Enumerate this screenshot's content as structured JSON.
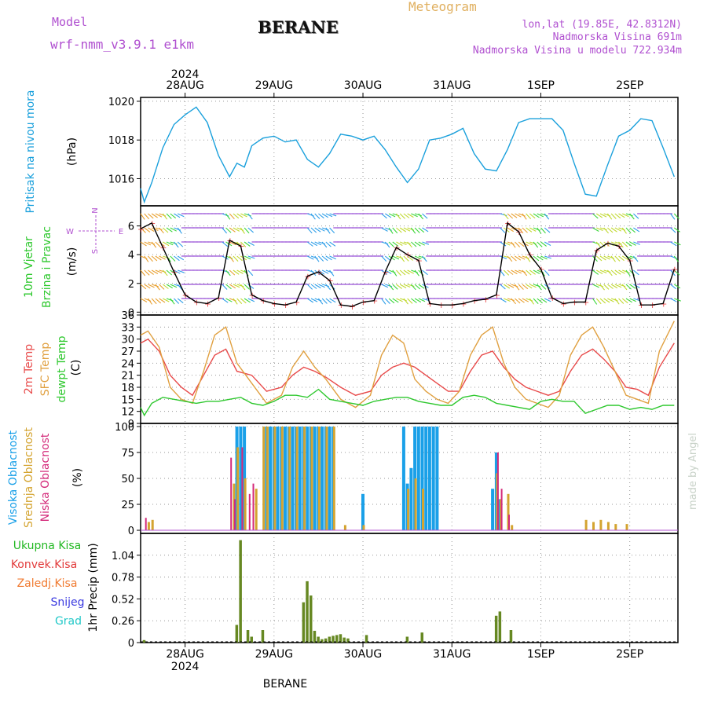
{
  "header": {
    "model_label": "Model",
    "model_name": "wrf-nmm_v3.9.1 e1km",
    "title": "BERANE",
    "meteogram_label": "Meteogram",
    "lonlat": "lon,lat (19.85E, 42.8312N)",
    "altitude": "Nadmorska Visina 691m",
    "model_altitude": "Nadmorska Visina u modelu 722.934m",
    "credit": "made by Angel",
    "footer_station": "BERANE"
  },
  "colors": {
    "pressure": "#1aa0dc",
    "temp2m": "#e84a4a",
    "sfc": "#e0a040",
    "dew": "#2ec82e",
    "high": "#1aa0e8",
    "mid": "#d4a430",
    "low": "#d42a7a",
    "total": "#22b822",
    "conv": "#e23a3a",
    "frz": "#f07a30",
    "snow": "#3a3ae0",
    "hail": "#22c8c8",
    "purple": "#b050d0",
    "gold": "#e0b060",
    "bar": "#668822"
  },
  "time_axis": {
    "year": "2024",
    "days": [
      "28AUG",
      "29AUG",
      "30AUG",
      "31AUG",
      "1SEP",
      "2SEP"
    ],
    "day_hours": [
      12,
      36,
      60,
      84,
      108,
      132
    ],
    "total_hours": 145
  },
  "chart_data": [
    {
      "type": "line",
      "id": "pressure",
      "ylabel_title": "Pritisak na nivou mora",
      "ylabel_unit": "(hPa)",
      "yticks": [
        "1016",
        "1018",
        "1020"
      ],
      "ylim": [
        1014.6,
        1020.2
      ],
      "grid": true,
      "series": [
        {
          "x": [
            0,
            1,
            3,
            6,
            9,
            12,
            15,
            18,
            21,
            24,
            26,
            28,
            30,
            33,
            36,
            39,
            42,
            45,
            48,
            51,
            54,
            57,
            60,
            63,
            66,
            69,
            72,
            75,
            78,
            81,
            84,
            87,
            90,
            93,
            96,
            99,
            102,
            105,
            108,
            111,
            114,
            117,
            120,
            123,
            126,
            129,
            132,
            135,
            138,
            141,
            144
          ],
          "y": [
            1015.5,
            1014.8,
            1015.8,
            1017.6,
            1018.8,
            1019.3,
            1019.7,
            1018.9,
            1017.2,
            1016.1,
            1016.8,
            1016.6,
            1017.7,
            1018.1,
            1018.2,
            1017.9,
            1018.0,
            1017.0,
            1016.6,
            1017.3,
            1018.3,
            1018.2,
            1018.0,
            1018.2,
            1017.5,
            1016.6,
            1015.8,
            1016.5,
            1018.0,
            1018.1,
            1018.3,
            1018.6,
            1017.3,
            1016.5,
            1016.4,
            1017.5,
            1018.9,
            1019.1,
            1019.1,
            1019.1,
            1018.5,
            1016.8,
            1015.2,
            1015.1,
            1016.7,
            1018.2,
            1018.5,
            1019.1,
            1019.0,
            1017.6,
            1016.1
          ]
        }
      ]
    },
    {
      "type": "scatter",
      "id": "wind",
      "ylabel_title": "10m Vjetar",
      "ylabel_subtitle": "Brzina i Pravac",
      "ylabel_unit": "(m/s)",
      "compass": {
        "n": "N",
        "s": "S",
        "w": "W",
        "e": "E"
      },
      "yticks": [
        "0",
        "2",
        "4",
        "6"
      ],
      "ylim": [
        -0.2,
        7.4
      ],
      "grid": true,
      "series": [
        {
          "name": "speed",
          "x": [
            0,
            3,
            6,
            9,
            12,
            15,
            18,
            21,
            24,
            27,
            30,
            33,
            36,
            39,
            42,
            45,
            48,
            51,
            54,
            57,
            60,
            63,
            66,
            69,
            72,
            75,
            78,
            81,
            84,
            87,
            90,
            93,
            96,
            99,
            102,
            105,
            108,
            111,
            114,
            117,
            120,
            123,
            126,
            129,
            132,
            135,
            138,
            141,
            144
          ],
          "y": [
            5.8,
            6.2,
            4.5,
            2.8,
            1.2,
            0.7,
            0.6,
            1.0,
            5.0,
            4.6,
            1.2,
            0.8,
            0.6,
            0.5,
            0.7,
            2.5,
            2.8,
            2.2,
            0.5,
            0.4,
            0.7,
            0.8,
            2.8,
            4.5,
            4.0,
            3.6,
            0.6,
            0.5,
            0.5,
            0.6,
            0.8,
            0.9,
            1.2,
            6.2,
            5.6,
            4.0,
            3.0,
            1.0,
            0.6,
            0.7,
            0.7,
            4.3,
            4.8,
            4.6,
            3.6,
            0.5,
            0.5,
            0.6,
            3.0
          ]
        }
      ]
    },
    {
      "type": "line",
      "id": "temperature",
      "ylabel_titles": [
        "2m Temp",
        "SFC Temp",
        "dewpt Temp"
      ],
      "ylabel_unit": "(C)",
      "yticks": [
        "9",
        "12",
        "15",
        "18",
        "21",
        "24",
        "27",
        "30",
        "33",
        "36"
      ],
      "ylim": [
        9,
        36
      ],
      "grid": true,
      "series": [
        {
          "name": "2m Temp",
          "x": [
            0,
            2,
            5,
            8,
            11,
            14,
            17,
            20,
            23,
            26,
            30,
            34,
            38,
            41,
            44,
            47,
            50,
            54,
            58,
            62,
            65,
            68,
            71,
            74,
            77,
            80,
            83,
            86,
            89,
            92,
            95,
            98,
            101,
            104,
            107,
            110,
            113,
            116,
            119,
            122,
            125,
            128,
            131,
            134,
            137,
            140,
            144
          ],
          "y": [
            29,
            30,
            27,
            21,
            18,
            16,
            21,
            26,
            27.5,
            22,
            21,
            17,
            18,
            21,
            23,
            22,
            20.5,
            18,
            16,
            17,
            21,
            23,
            24,
            23,
            21,
            19,
            17,
            17,
            22,
            26,
            27,
            23,
            20,
            18,
            17,
            16,
            17,
            22,
            26,
            27.5,
            25,
            22,
            18,
            17.5,
            16,
            23,
            29
          ]
        },
        {
          "name": "SFC Temp",
          "x": [
            0,
            2,
            5,
            8,
            11,
            14,
            17,
            20,
            23,
            26,
            30,
            34,
            38,
            41,
            44,
            47,
            50,
            54,
            58,
            62,
            65,
            68,
            71,
            74,
            77,
            80,
            83,
            86,
            89,
            92,
            95,
            98,
            101,
            104,
            107,
            110,
            113,
            116,
            119,
            122,
            125,
            128,
            131,
            134,
            137,
            140,
            144
          ],
          "y": [
            31,
            32,
            28,
            18,
            15,
            14,
            22,
            31,
            33,
            24,
            19,
            14,
            16,
            23,
            27,
            23,
            20,
            15,
            13,
            16,
            26,
            31,
            29,
            20,
            17,
            15,
            14,
            17,
            26,
            31,
            33,
            24,
            18,
            15,
            14,
            13,
            16,
            26,
            31,
            33,
            28,
            22,
            16,
            15,
            14,
            27,
            34.5
          ]
        },
        {
          "name": "dewpt Temp",
          "x": [
            0,
            1,
            3,
            6,
            9,
            12,
            15,
            18,
            21,
            24,
            27,
            30,
            33,
            36,
            39,
            42,
            45,
            48,
            51,
            54,
            57,
            60,
            63,
            66,
            69,
            72,
            75,
            78,
            81,
            84,
            87,
            90,
            93,
            96,
            99,
            102,
            105,
            108,
            111,
            114,
            117,
            120,
            123,
            126,
            129,
            132,
            135,
            138,
            141,
            144
          ],
          "y": [
            13,
            11,
            14,
            15.5,
            15,
            14.5,
            14,
            14.5,
            14.5,
            15,
            15.5,
            14,
            13.5,
            14.5,
            16,
            16,
            15.5,
            17.5,
            15,
            14.5,
            14,
            13.5,
            14.5,
            15,
            15.5,
            15.5,
            14.5,
            14,
            13.5,
            13.5,
            15.5,
            16,
            15.5,
            14,
            13.5,
            13,
            12.5,
            14.5,
            15,
            14.5,
            14.5,
            11.5,
            12.5,
            13.5,
            13.5,
            12.5,
            13,
            12.5,
            13.5,
            13.5
          ]
        }
      ]
    },
    {
      "type": "bar",
      "id": "clouds",
      "ylabel_titles": [
        "Visoka Oblacnost",
        "Srednja Oblacnost",
        "Niska Oblacnost"
      ],
      "ylabel_unit": "(%)",
      "yticks": [
        "0",
        "25",
        "50",
        "75",
        "100"
      ],
      "ylim": [
        -3,
        103
      ],
      "grid": true,
      "series": [
        {
          "name": "Visoka Oblacnost",
          "x": [
            26,
            27,
            28,
            34,
            35,
            36,
            37,
            38,
            39,
            40,
            41,
            42,
            43,
            44,
            45,
            46,
            47,
            48,
            49,
            50,
            51,
            52,
            60,
            71,
            72,
            73,
            74,
            75,
            76,
            77,
            78,
            79,
            80,
            95,
            96,
            97
          ],
          "y": [
            100,
            100,
            100,
            100,
            100,
            100,
            100,
            100,
            100,
            100,
            100,
            100,
            100,
            100,
            100,
            100,
            100,
            100,
            100,
            100,
            100,
            100,
            35,
            100,
            45,
            60,
            100,
            100,
            100,
            100,
            100,
            100,
            100,
            40,
            75,
            30
          ]
        },
        {
          "name": "Srednja Oblacnost",
          "x": [
            2,
            3,
            25,
            26,
            28,
            31,
            33,
            34,
            36,
            38,
            40,
            42,
            44,
            46,
            48,
            50,
            52,
            55,
            60,
            72,
            74,
            76,
            96,
            97,
            99,
            100,
            120,
            122,
            124,
            126,
            128,
            131
          ],
          "y": [
            8,
            10,
            45,
            80,
            50,
            40,
            100,
            100,
            100,
            100,
            100,
            100,
            100,
            100,
            100,
            100,
            100,
            5,
            5,
            40,
            50,
            40,
            55,
            30,
            35,
            5,
            10,
            8,
            10,
            8,
            6,
            6
          ]
        },
        {
          "name": "Niska Oblacnost",
          "x": [
            1,
            24,
            25,
            27,
            29,
            30,
            96,
            97,
            99
          ],
          "y": [
            12,
            70,
            30,
            80,
            35,
            45,
            75,
            40,
            15
          ]
        }
      ]
    },
    {
      "type": "bar",
      "id": "precip",
      "ylabel_title": "1hr Precip (mm)",
      "legend": [
        "Ukupna Kisa",
        "Konvek.Kisa",
        "Zaledj.Kisa",
        "Snijeg",
        "Grad"
      ],
      "yticks": [
        "0",
        "0.26",
        "0.52",
        "0.78",
        "1.04"
      ],
      "ylim": [
        0,
        1.3
      ],
      "grid": true,
      "series": [
        {
          "name": "Ukupna Kisa",
          "x": [
            1,
            26,
            27,
            29,
            30,
            33,
            44,
            45,
            46,
            47,
            48,
            49,
            50,
            51,
            52,
            53,
            54,
            55,
            56,
            61,
            72,
            76,
            96,
            97,
            100
          ],
          "y": [
            0.03,
            0.21,
            1.22,
            0.15,
            0.07,
            0.15,
            0.48,
            0.73,
            0.56,
            0.14,
            0.07,
            0.04,
            0.05,
            0.07,
            0.08,
            0.09,
            0.1,
            0.06,
            0.05,
            0.09,
            0.07,
            0.12,
            0.32,
            0.37,
            0.15
          ]
        }
      ]
    }
  ]
}
